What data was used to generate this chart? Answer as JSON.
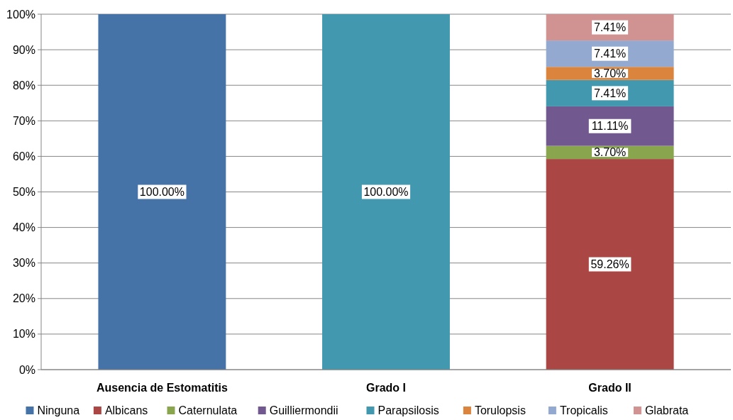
{
  "chart_data": {
    "type": "bar",
    "stacked": true,
    "categories": [
      "Ausencia de Estomatitis",
      "Grado I",
      "Grado II"
    ],
    "series": [
      {
        "name": "Ninguna",
        "color": "#4572a7",
        "values": [
          100,
          0,
          0
        ],
        "value_labels": [
          "100.00%",
          null,
          null
        ]
      },
      {
        "name": "Albicans",
        "color": "#aa4643",
        "values": [
          0,
          0,
          59.26
        ],
        "value_labels": [
          null,
          null,
          "59.26%"
        ]
      },
      {
        "name": "Caternulata",
        "color": "#89a54e",
        "values": [
          0,
          0,
          3.7
        ],
        "value_labels": [
          null,
          null,
          "3.70%"
        ]
      },
      {
        "name": "Guilliermondii",
        "color": "#71588f",
        "values": [
          0,
          0,
          11.11
        ],
        "value_labels": [
          null,
          null,
          "11.11%"
        ]
      },
      {
        "name": "Parapsilosis",
        "color": "#4198af",
        "values": [
          0,
          100,
          7.41
        ],
        "value_labels": [
          null,
          "100.00%",
          "7.41%"
        ]
      },
      {
        "name": "Torulopsis",
        "color": "#db843d",
        "values": [
          0,
          0,
          3.7
        ],
        "value_labels": [
          null,
          null,
          "3.70%"
        ]
      },
      {
        "name": "Tropicalis",
        "color": "#93a9cf",
        "values": [
          0,
          0,
          7.41
        ],
        "value_labels": [
          null,
          null,
          "7.41%"
        ]
      },
      {
        "name": "Glabrata",
        "color": "#d19392",
        "values": [
          0,
          0,
          7.41
        ],
        "value_labels": [
          null,
          null,
          "7.41%"
        ]
      }
    ],
    "ylim": [
      0,
      100
    ],
    "yticks": [
      {
        "value": 0,
        "label": "0%"
      },
      {
        "value": 10,
        "label": "10%"
      },
      {
        "value": 20,
        "label": "20%"
      },
      {
        "value": 30,
        "label": "30%"
      },
      {
        "value": 40,
        "label": "40%"
      },
      {
        "value": 50,
        "label": "50%"
      },
      {
        "value": 60,
        "label": "60%"
      },
      {
        "value": 70,
        "label": "70%"
      },
      {
        "value": 80,
        "label": "80%"
      },
      {
        "value": 90,
        "label": "90%"
      },
      {
        "value": 100,
        "label": "100%"
      }
    ],
    "grid": "y",
    "legend": "bottom"
  }
}
